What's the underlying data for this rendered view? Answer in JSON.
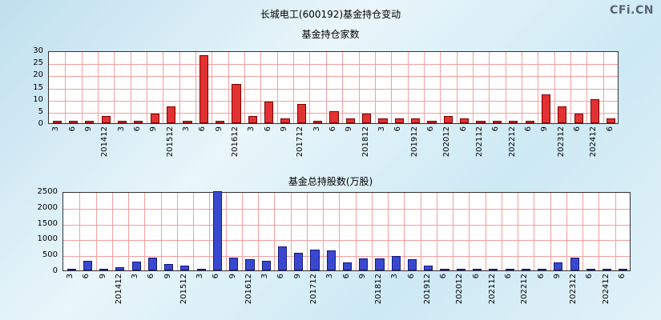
{
  "header": {
    "title": "长城电工(600192)基金持仓变动",
    "watermark": "CFi.CN"
  },
  "chart_data": [
    {
      "type": "bar",
      "title": "基金持仓家数",
      "ylim": [
        0,
        30
      ],
      "yticks": [
        0,
        5,
        10,
        15,
        20,
        25,
        30
      ],
      "bar_color": "#e23232",
      "bar_border": "#7e0000",
      "grid_color": "#f2a0a0",
      "categories": [
        "3",
        "6",
        "9",
        "201412",
        "3",
        "6",
        "9",
        "201512",
        "3",
        "6",
        "9",
        "201612",
        "3",
        "6",
        "9",
        "201712",
        "3",
        "6",
        "9",
        "201812",
        "3",
        "6",
        "201912",
        "6",
        "202012",
        "6",
        "202112",
        "6",
        "202212",
        "6",
        "9",
        "202312",
        "6",
        "202412",
        "6"
      ],
      "values": [
        1,
        1,
        1,
        3,
        1,
        1,
        4,
        7,
        1,
        28,
        1,
        16,
        3,
        9,
        2,
        8,
        1,
        5,
        2,
        4,
        2,
        2,
        2,
        1,
        3,
        2,
        1,
        1,
        1,
        1,
        12,
        7,
        4,
        10,
        2
      ]
    },
    {
      "type": "bar",
      "title": "基金总持股数(万股)",
      "ylim": [
        0,
        2500
      ],
      "yticks": [
        0,
        500,
        1000,
        1500,
        2000,
        2500
      ],
      "bar_color": "#3948cf",
      "bar_border": "#141b7e",
      "grid_color": "#f2a0a0",
      "categories": [
        "3",
        "6",
        "9",
        "201412",
        "3",
        "6",
        "9",
        "201512",
        "3",
        "6",
        "9",
        "201612",
        "3",
        "6",
        "9",
        "201712",
        "3",
        "6",
        "9",
        "201812",
        "3",
        "6",
        "201912",
        "6",
        "202012",
        "6",
        "202112",
        "6",
        "202212",
        "6",
        "9",
        "202312",
        "6",
        "202412",
        "6"
      ],
      "values": [
        20,
        300,
        50,
        100,
        280,
        400,
        200,
        150,
        50,
        2500,
        400,
        350,
        300,
        750,
        560,
        650,
        620,
        250,
        390,
        380,
        460,
        350,
        150,
        40,
        30,
        30,
        20,
        40,
        30,
        20,
        250,
        400,
        40,
        60,
        30
      ]
    }
  ]
}
